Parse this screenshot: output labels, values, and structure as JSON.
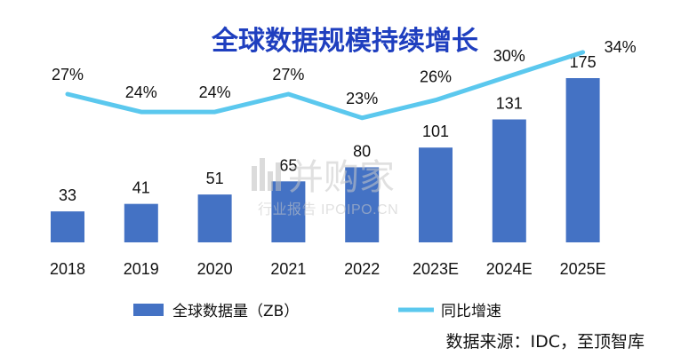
{
  "chart_data": {
    "type": "bar",
    "title": "全球数据规模持续增长",
    "categories": [
      "2018",
      "2019",
      "2020",
      "2021",
      "2022",
      "2023E",
      "2024E",
      "2025E"
    ],
    "series": [
      {
        "name": "全球数据量（ZB）",
        "type": "bar",
        "values": [
          33,
          41,
          51,
          65,
          80,
          101,
          131,
          175
        ],
        "color": "#4472C4"
      },
      {
        "name": "同比增速",
        "type": "line",
        "values": [
          27,
          24,
          24,
          27,
          23,
          26,
          30,
          34
        ],
        "labels": [
          "27%",
          "24%",
          "24%",
          "27%",
          "23%",
          "26%",
          "30%",
          "34%"
        ],
        "color": "#5BC8EE"
      }
    ],
    "legend_position": "bottom-center",
    "grid": false,
    "source": "数据来源：IDC，至顶智库"
  },
  "watermark": {
    "brand": "并购家",
    "sub": "行业报告 IPOIPO.CN"
  }
}
